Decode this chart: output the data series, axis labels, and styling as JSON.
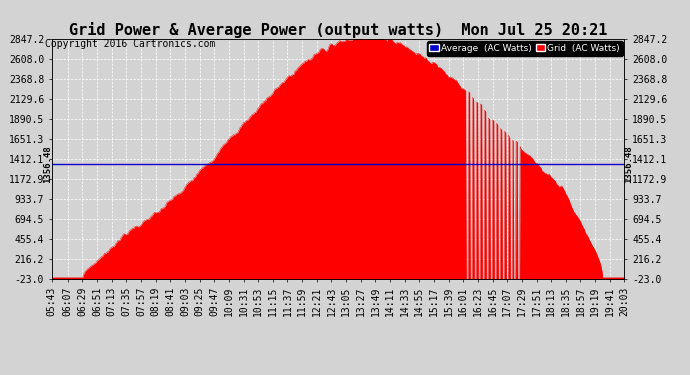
{
  "title": "Grid Power & Average Power (output watts)  Mon Jul 25 20:21",
  "copyright": "Copyright 2016 Cartronics.com",
  "legend_labels": [
    "Average  (AC Watts)",
    "Grid  (AC Watts)"
  ],
  "legend_colors": [
    "#0000cd",
    "#ff0000"
  ],
  "average_line_value": 1356.48,
  "average_label": "1356.48",
  "yticks": [
    -23.0,
    216.2,
    455.4,
    694.5,
    933.7,
    1172.9,
    1412.1,
    1651.3,
    1890.5,
    2129.6,
    2368.8,
    2608.0,
    2847.2
  ],
  "ymin": -23.0,
  "ymax": 2847.2,
  "fill_color": "#ff0000",
  "line_color": "#ff0000",
  "avg_line_color": "#0000cd",
  "background_color": "#d3d3d3",
  "grid_color": "#ffffff",
  "title_fontsize": 11,
  "copyright_fontsize": 7,
  "tick_fontsize": 7,
  "xtick_labels": [
    "05:43",
    "06:07",
    "06:29",
    "06:51",
    "07:13",
    "07:35",
    "07:57",
    "08:19",
    "08:41",
    "09:03",
    "09:25",
    "09:47",
    "10:09",
    "10:31",
    "10:53",
    "11:15",
    "11:37",
    "11:59",
    "12:21",
    "12:43",
    "13:05",
    "13:27",
    "13:49",
    "14:11",
    "14:33",
    "14:55",
    "15:17",
    "15:39",
    "16:01",
    "16:23",
    "16:45",
    "17:07",
    "17:29",
    "17:51",
    "18:13",
    "18:35",
    "18:57",
    "19:19",
    "19:41",
    "20:03"
  ]
}
